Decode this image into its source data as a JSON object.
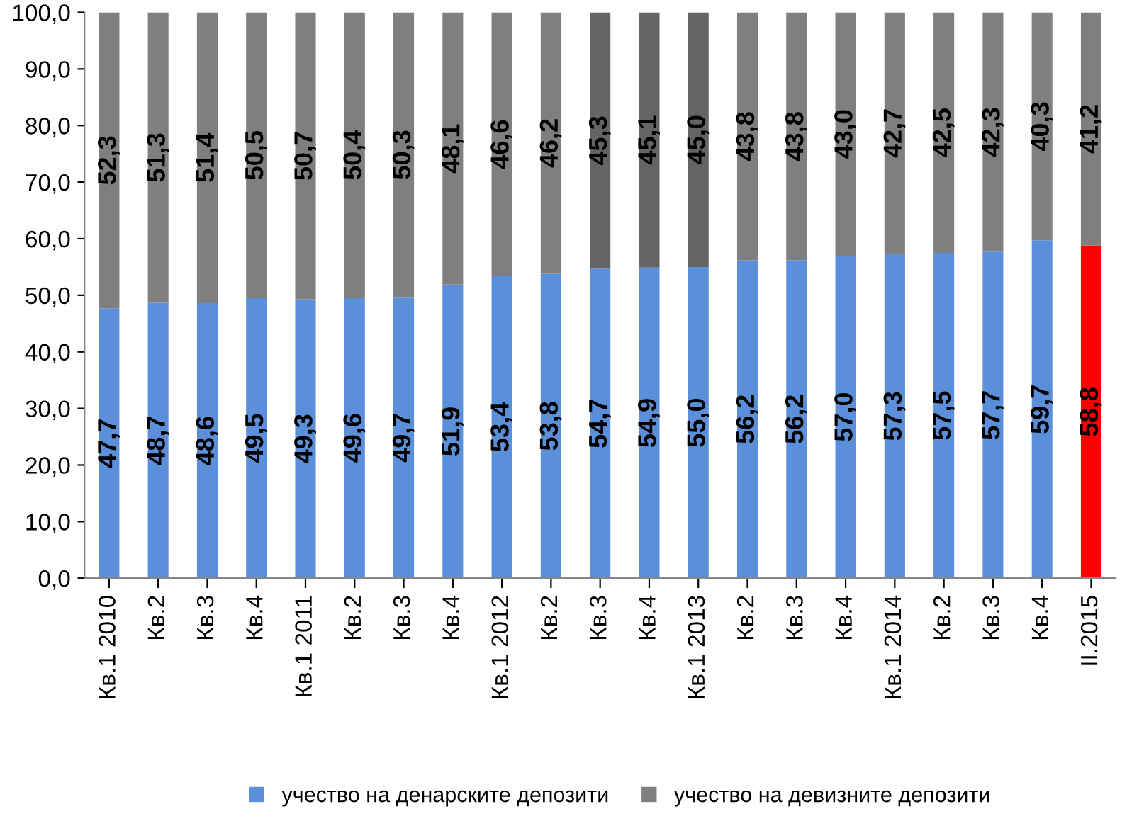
{
  "chart_data": {
    "type": "bar",
    "stacked": true,
    "categories": [
      "Кв.1 2010",
      "Кв.2",
      "Кв.3",
      "Кв.4",
      "Кв.1 2011",
      "Кв.2",
      "Кв.3",
      "Кв.4",
      "Кв.1 2012",
      "Кв.2",
      "Кв.3",
      "Кв.4",
      "Кв.1 2013",
      "Кв.2",
      "Кв.3",
      "Кв.4",
      "Кв.1 2014",
      "Кв.2",
      "Кв.3",
      "Кв.4",
      "II.2015"
    ],
    "series": [
      {
        "name": "учество на денарските депозити",
        "color": "#5b8fd9",
        "colors": [
          "#5b8fd9",
          "#5b8fd9",
          "#5b8fd9",
          "#5b8fd9",
          "#5b8fd9",
          "#5b8fd9",
          "#5b8fd9",
          "#5b8fd9",
          "#5b8fd9",
          "#5b8fd9",
          "#5b8fd9",
          "#5b8fd9",
          "#5b8fd9",
          "#5b8fd9",
          "#5b8fd9",
          "#5b8fd9",
          "#5b8fd9",
          "#5b8fd9",
          "#5b8fd9",
          "#5b8fd9",
          "#ff0000"
        ],
        "values": [
          47.7,
          48.7,
          48.6,
          49.5,
          49.3,
          49.6,
          49.7,
          51.9,
          53.4,
          53.8,
          54.7,
          54.9,
          55.0,
          56.2,
          56.2,
          57.0,
          57.3,
          57.5,
          57.7,
          59.7,
          58.8
        ],
        "value_labels": [
          "47,7",
          "48,7",
          "48,6",
          "49,5",
          "49,3",
          "49,6",
          "49,7",
          "51,9",
          "53,4",
          "53,8",
          "54,7",
          "54,9",
          "55,0",
          "56,2",
          "56,2",
          "57,0",
          "57,3",
          "57,5",
          "57,7",
          "59,7",
          "58,8"
        ]
      },
      {
        "name": "учество на девизните депозити",
        "color": "#7f7f7f",
        "colors": [
          "#7f7f7f",
          "#7f7f7f",
          "#7f7f7f",
          "#7f7f7f",
          "#7f7f7f",
          "#7f7f7f",
          "#7f7f7f",
          "#7f7f7f",
          "#7f7f7f",
          "#7f7f7f",
          "#646464",
          "#646464",
          "#646464",
          "#7f7f7f",
          "#7f7f7f",
          "#7f7f7f",
          "#7f7f7f",
          "#7f7f7f",
          "#7f7f7f",
          "#7f7f7f",
          "#7f7f7f"
        ],
        "values": [
          52.3,
          51.3,
          51.4,
          50.5,
          50.7,
          50.4,
          50.3,
          48.1,
          46.6,
          46.2,
          45.3,
          45.1,
          45.0,
          43.8,
          43.8,
          43.0,
          42.7,
          42.5,
          42.3,
          40.3,
          41.2
        ],
        "value_labels": [
          "52,3",
          "51,3",
          "51,4",
          "50,5",
          "50,7",
          "50,4",
          "50,3",
          "48,1",
          "46,6",
          "46,2",
          "45,3",
          "45,1",
          "45,0",
          "43,8",
          "43,8",
          "43,0",
          "42,7",
          "42,5",
          "42,3",
          "40,3",
          "41,2"
        ]
      }
    ],
    "ylim": [
      0,
      100
    ],
    "yticks": [
      {
        "value": 0,
        "label": "0,0"
      },
      {
        "value": 10,
        "label": "10,0"
      },
      {
        "value": 20,
        "label": "20,0"
      },
      {
        "value": 30,
        "label": "30,0"
      },
      {
        "value": 40,
        "label": "40,0"
      },
      {
        "value": 50,
        "label": "50,0"
      },
      {
        "value": 60,
        "label": "60,0"
      },
      {
        "value": 70,
        "label": "70,0"
      },
      {
        "value": 80,
        "label": "80,0"
      },
      {
        "value": 90,
        "label": "90,0"
      },
      {
        "value": 100,
        "label": "100,0"
      }
    ],
    "grid": false,
    "legend": "bottom"
  }
}
